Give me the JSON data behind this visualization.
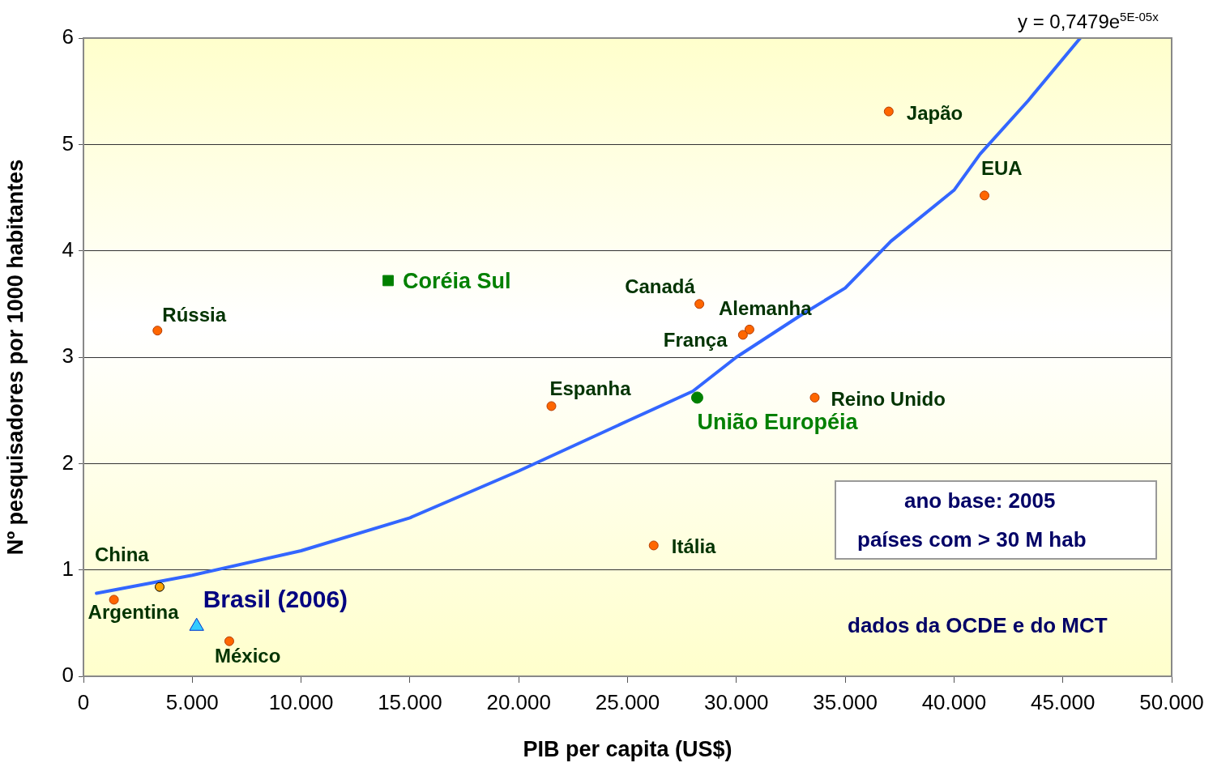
{
  "chart_data": {
    "type": "scatter",
    "xlabel": "PIB per capita (US$)",
    "ylabel": "Nº pesquisadores por 1000 habitantes",
    "xlim": [
      0,
      50000
    ],
    "ylim": [
      0,
      6
    ],
    "xticks": [
      0,
      {
        "value": 5000,
        "label": "5.000"
      },
      {
        "value": 10000,
        "label": "10.000"
      },
      {
        "value": 15000,
        "label": "15.000"
      },
      {
        "value": 20000,
        "label": "20.000"
      },
      {
        "value": 25000,
        "label": "25.000"
      },
      {
        "value": 30000,
        "label": "30.000"
      },
      {
        "value": 35000,
        "label": "35.000"
      },
      {
        "value": 40000,
        "label": "40.000"
      },
      {
        "value": 45000,
        "label": "45.000"
      },
      {
        "value": 50000,
        "label": "50.000"
      }
    ],
    "yticks": [
      0,
      1,
      2,
      3,
      4,
      5,
      6
    ],
    "grid": "y",
    "legend": false,
    "marker": "circle",
    "series": [
      {
        "type": "line",
        "color": "#3366ff",
        "marker": "none",
        "line_style": "solid",
        "x": [
          600,
          5000,
          10000,
          15000,
          20000,
          25000,
          28000,
          30000,
          33000,
          35000,
          37100,
          40000,
          41200,
          43400,
          45800
        ],
        "values": [
          0.78,
          0.95,
          1.18,
          1.49,
          1.93,
          2.4,
          2.68,
          3.0,
          3.4,
          3.65,
          4.09,
          4.57,
          4.91,
          5.41,
          6.0
        ]
      },
      {
        "name": "Argentina",
        "color": "#ff6600",
        "x": [
          1400
        ],
        "values": [
          0.72
        ]
      },
      {
        "name": "China",
        "color": "#ffa500",
        "x": [
          3500
        ],
        "values": [
          0.84
        ]
      },
      {
        "name": "Brasil (2006)",
        "color": "#33ccff",
        "marker": "triangle",
        "x": [
          5200
        ],
        "values": [
          0.47
        ]
      },
      {
        "name": "México",
        "color": "#ff6600",
        "x": [
          6700
        ],
        "values": [
          0.33
        ]
      },
      {
        "name": "Rússia",
        "color": "#ff6600",
        "x": [
          3400
        ],
        "values": [
          3.25
        ]
      },
      {
        "name": "Coréia Sul",
        "color": "#008000",
        "marker": "square",
        "x": [
          14000
        ],
        "values": [
          3.72
        ]
      },
      {
        "name": "Espanha",
        "color": "#ff6600",
        "x": [
          21500
        ],
        "values": [
          2.54
        ]
      },
      {
        "name": "Canadá",
        "color": "#ff6600",
        "x": [
          28300
        ],
        "values": [
          3.5
        ]
      },
      {
        "name": "França",
        "color": "#ff6600",
        "x": [
          30300
        ],
        "values": [
          3.21
        ]
      },
      {
        "name": "Alemanha",
        "color": "#ff6600",
        "x": [
          30600
        ],
        "values": [
          3.26
        ]
      },
      {
        "name": "União Européia",
        "color": "#008000",
        "x": [
          28200
        ],
        "values": [
          2.62
        ]
      },
      {
        "name": "Reino Unido",
        "color": "#ff6600",
        "x": [
          33600
        ],
        "values": [
          2.62
        ]
      },
      {
        "name": "Itália",
        "color": "#ff6600",
        "x": [
          26200
        ],
        "values": [
          1.23
        ]
      },
      {
        "name": "Japão",
        "color": "#ff6600",
        "x": [
          37000
        ],
        "values": [
          5.31
        ]
      },
      {
        "name": "EUA",
        "color": "#ff6600",
        "x": [
          41400
        ],
        "values": [
          4.52
        ]
      }
    ],
    "annotations": [
      "y = 0,7479e$^{5E-05x}$",
      "ano base: 2005",
      "países com > 30 M hab",
      "dados da OCDE e do MCT"
    ]
  }
}
